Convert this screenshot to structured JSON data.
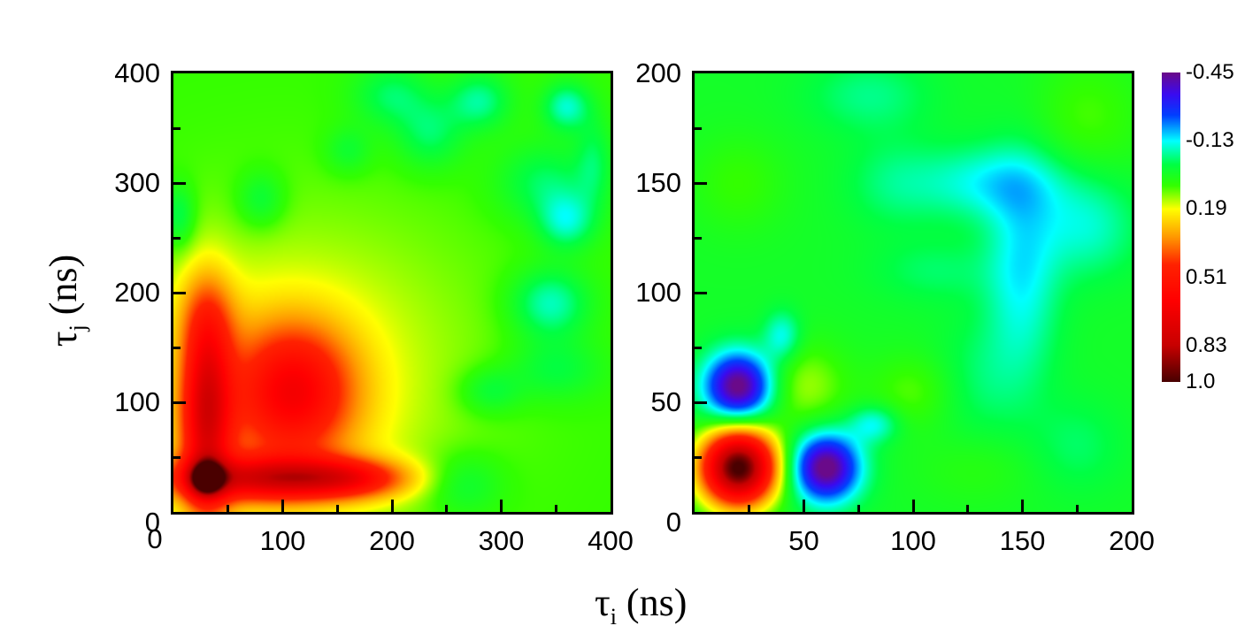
{
  "chart_data": [
    {
      "type": "heatmap",
      "panel": "left",
      "title": "",
      "xlabel": "τi (ns)",
      "ylabel": "τj (ns)",
      "xlim": [
        0,
        400
      ],
      "ylim": [
        0,
        400
      ],
      "xticks": [
        "0",
        "100",
        "200",
        "300",
        "400"
      ],
      "yticks": [
        "0",
        "100",
        "200",
        "300",
        "400"
      ],
      "minor_tick_step": 50,
      "background_value": 0.08,
      "features": [
        {
          "desc": "dark-red peak",
          "x": 30,
          "y": 30,
          "value": 1.0
        },
        {
          "desc": "red vertical ridge",
          "x": 30,
          "y": 100,
          "value": 0.6
        },
        {
          "desc": "red horizontal ridge",
          "x": 100,
          "y": 30,
          "value": 0.6
        },
        {
          "desc": "orange cross-peak",
          "x": 110,
          "y": 110,
          "value": 0.4
        },
        {
          "desc": "yellow halo",
          "x": 100,
          "y": 100,
          "value": 0.2
        },
        {
          "desc": "cyan patches upper-right",
          "x": 350,
          "y": 300,
          "value": -0.13
        }
      ],
      "blobs": [
        {
          "x": 30,
          "y": 30,
          "sx": 10,
          "sy": 10,
          "a": 0.55
        },
        {
          "x": 30,
          "y": 90,
          "sx": 16,
          "sy": 65,
          "a": 0.55
        },
        {
          "x": 90,
          "y": 30,
          "sx": 65,
          "sy": 14,
          "a": 0.55
        },
        {
          "x": 165,
          "y": 30,
          "sx": 35,
          "sy": 12,
          "a": 0.22
        },
        {
          "x": 110,
          "y": 110,
          "sx": 38,
          "sy": 42,
          "a": 0.42
        },
        {
          "x": 80,
          "y": 80,
          "sx": 95,
          "sy": 95,
          "a": 0.13
        },
        {
          "x": 150,
          "y": 160,
          "sx": 110,
          "sy": 90,
          "a": 0.05
        },
        {
          "x": 30,
          "y": 180,
          "sx": 20,
          "sy": 30,
          "a": 0.12
        },
        {
          "x": 200,
          "y": 380,
          "sx": 25,
          "sy": 20,
          "a": -0.12
        },
        {
          "x": 280,
          "y": 375,
          "sx": 20,
          "sy": 18,
          "a": -0.15
        },
        {
          "x": 235,
          "y": 345,
          "sx": 22,
          "sy": 22,
          "a": -0.12
        },
        {
          "x": 340,
          "y": 300,
          "sx": 30,
          "sy": 25,
          "a": -0.12
        },
        {
          "x": 360,
          "y": 370,
          "sx": 15,
          "sy": 15,
          "a": -0.18
        },
        {
          "x": 360,
          "y": 265,
          "sx": 18,
          "sy": 18,
          "a": -0.17
        },
        {
          "x": 345,
          "y": 190,
          "sx": 25,
          "sy": 22,
          "a": -0.18
        },
        {
          "x": 350,
          "y": 130,
          "sx": 30,
          "sy": 20,
          "a": -0.1
        },
        {
          "x": 290,
          "y": 110,
          "sx": 20,
          "sy": 15,
          "a": -0.1
        },
        {
          "x": 265,
          "y": 25,
          "sx": 25,
          "sy": 20,
          "a": -0.1
        },
        {
          "x": 80,
          "y": 285,
          "sx": 15,
          "sy": 18,
          "a": -0.1
        },
        {
          "x": 5,
          "y": 270,
          "sx": 10,
          "sy": 20,
          "a": -0.12
        },
        {
          "x": 160,
          "y": 330,
          "sx": 15,
          "sy": 15,
          "a": -0.08
        },
        {
          "x": 385,
          "y": 320,
          "sx": 12,
          "sy": 30,
          "a": -0.1
        }
      ]
    },
    {
      "type": "heatmap",
      "panel": "right",
      "title": "",
      "xlabel": "τi (ns)",
      "ylabel": "",
      "xlim": [
        0,
        200
      ],
      "ylim": [
        0,
        200
      ],
      "xticks": [
        "50",
        "100",
        "150",
        "200"
      ],
      "yticks": [
        "0",
        "50",
        "100",
        "150",
        "200"
      ],
      "minor_tick_step": 25,
      "background_value": 0.02,
      "features": [
        {
          "desc": "dark-red peak",
          "x": 20,
          "y": 20,
          "value": 1.0
        },
        {
          "desc": "violet negative peak",
          "x": 60,
          "y": 20,
          "value": -0.45
        },
        {
          "desc": "violet negative peak",
          "x": 20,
          "y": 57,
          "value": -0.45
        },
        {
          "desc": "yellow cross-peak",
          "x": 50,
          "y": 57,
          "value": 0.19
        },
        {
          "desc": "cyan diagonal bands",
          "x": 150,
          "y": 150,
          "value": -0.13
        }
      ],
      "blobs": [
        {
          "x": 20,
          "y": 20,
          "sx": 12,
          "sy": 12,
          "a": 1.0
        },
        {
          "x": 60,
          "y": 20,
          "sx": 11,
          "sy": 11,
          "a": -0.5
        },
        {
          "x": 20,
          "y": 57,
          "sx": 11,
          "sy": 11,
          "a": -0.5
        },
        {
          "x": 40,
          "y": 80,
          "sx": 6,
          "sy": 8,
          "a": -0.15
        },
        {
          "x": 82,
          "y": 40,
          "sx": 8,
          "sy": 6,
          "a": -0.15
        },
        {
          "x": 50,
          "y": 57,
          "sx": 14,
          "sy": 14,
          "a": 0.12
        },
        {
          "x": 100,
          "y": 55,
          "sx": 14,
          "sy": 12,
          "a": 0.08
        },
        {
          "x": 135,
          "y": 150,
          "sx": 25,
          "sy": 12,
          "a": -0.14
        },
        {
          "x": 150,
          "y": 110,
          "sx": 12,
          "sy": 35,
          "a": -0.15
        },
        {
          "x": 180,
          "y": 130,
          "sx": 16,
          "sy": 16,
          "a": -0.12
        },
        {
          "x": 110,
          "y": 110,
          "sx": 20,
          "sy": 10,
          "a": -0.06
        },
        {
          "x": 80,
          "y": 190,
          "sx": 20,
          "sy": 12,
          "a": -0.08
        },
        {
          "x": 90,
          "y": 150,
          "sx": 15,
          "sy": 15,
          "a": -0.06
        },
        {
          "x": 20,
          "y": 150,
          "sx": 15,
          "sy": 15,
          "a": 0.06
        },
        {
          "x": 180,
          "y": 180,
          "sx": 18,
          "sy": 20,
          "a": 0.07
        },
        {
          "x": 130,
          "y": 60,
          "sx": 15,
          "sy": 20,
          "a": -0.06
        },
        {
          "x": 175,
          "y": 30,
          "sx": 15,
          "sy": 15,
          "a": -0.06
        },
        {
          "x": 130,
          "y": 20,
          "sx": 20,
          "sy": 12,
          "a": 0.04
        }
      ]
    }
  ],
  "colorbar": {
    "labels": [
      "-0.45",
      "-0.13",
      "0.19",
      "0.51",
      "0.83",
      "1.0"
    ],
    "values": [
      -0.45,
      -0.13,
      0.19,
      0.51,
      0.83,
      1.0
    ],
    "range": [
      -0.45,
      1.0
    ],
    "stops": [
      {
        "v": -0.45,
        "color": "#6a0a8a"
      },
      {
        "v": -0.35,
        "color": "#3a0af0"
      },
      {
        "v": -0.25,
        "color": "#0040ff"
      },
      {
        "v": -0.13,
        "color": "#00ffff"
      },
      {
        "v": -0.02,
        "color": "#00ff44"
      },
      {
        "v": 0.08,
        "color": "#33ff00"
      },
      {
        "v": 0.19,
        "color": "#ffff00"
      },
      {
        "v": 0.32,
        "color": "#ff9900"
      },
      {
        "v": 0.45,
        "color": "#ff2200"
      },
      {
        "v": 0.62,
        "color": "#ff0000"
      },
      {
        "v": 0.83,
        "color": "#c80000"
      },
      {
        "v": 1.0,
        "color": "#4a0000"
      }
    ]
  },
  "labels": {
    "ylabel_sym": "τ",
    "ylabel_sub": "j",
    "ylabel_unit": " (ns)",
    "xlabel_sym": "τ",
    "xlabel_sub": "i",
    "xlabel_unit": " (ns)",
    "left_x_origin": "0",
    "right_x_origin": "0"
  }
}
